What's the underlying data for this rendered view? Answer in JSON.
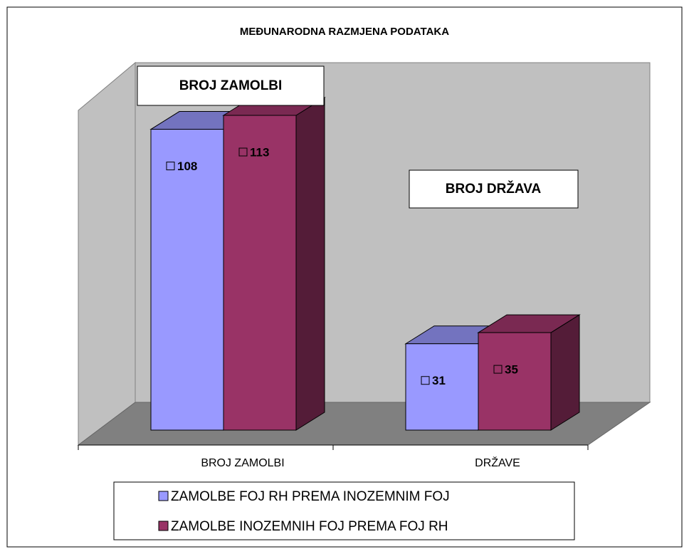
{
  "chart_data": {
    "type": "bar3d",
    "title": "MEĐUNARODNA RAZMJENA PODATAKA",
    "annotations": [
      "BROJ ZAMOLBI",
      "BROJ DRŽAVA"
    ],
    "categories": [
      "BROJ ZAMOLBI",
      "DRŽAVE"
    ],
    "series": [
      {
        "name": "ZAMOLBE FOJ RH PREMA INOZEMNIM FOJ",
        "color": "#9999ff",
        "values": [
          108,
          31
        ]
      },
      {
        "name": "ZAMOLBE INOZEMNIH FOJ PREMA FOJ RH",
        "color": "#993366",
        "values": [
          113,
          35
        ]
      }
    ]
  }
}
